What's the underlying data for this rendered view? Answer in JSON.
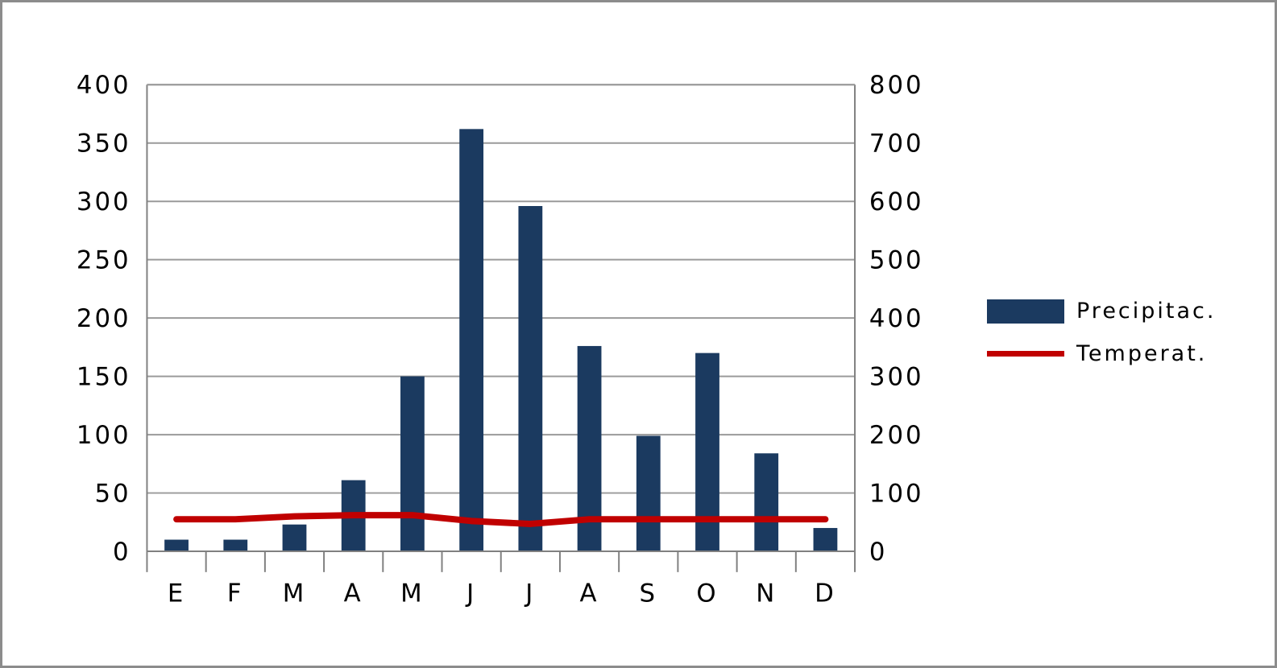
{
  "chart_data": {
    "type": "bar",
    "subtype": "bar-line-combo-climograph",
    "categories": [
      "E",
      "F",
      "M",
      "A",
      "M",
      "J",
      "J",
      "A",
      "S",
      "O",
      "N",
      "D"
    ],
    "series": [
      {
        "name": "Precipitac.",
        "type": "bar",
        "axis": "left",
        "color": "#1B3A60",
        "values": [
          10,
          10,
          23,
          61,
          150,
          362,
          296,
          176,
          99,
          170,
          84,
          20
        ]
      },
      {
        "name": "Temperat.",
        "type": "line",
        "axis": "right",
        "color": "#C00000",
        "values": [
          55,
          55,
          60,
          62,
          62,
          52,
          47,
          55,
          55,
          55,
          55,
          55
        ]
      }
    ],
    "title": "",
    "xlabel": "",
    "ylabel_left": "",
    "ylabel_right": "",
    "left_axis": {
      "min": 0,
      "max": 400,
      "step": 50,
      "ticks": [
        "0",
        "50",
        "100",
        "150",
        "200",
        "250",
        "300",
        "350",
        "400"
      ]
    },
    "right_axis": {
      "min": 0,
      "max": 800,
      "step": 100,
      "ticks": [
        "0",
        "100",
        "200",
        "300",
        "400",
        "500",
        "600",
        "700",
        "800"
      ]
    },
    "grid": true,
    "legend_position": "right"
  },
  "legend": {
    "items": [
      {
        "label": "Precipitac.",
        "swatch": "bar",
        "color": "#1B3A60"
      },
      {
        "label": "Temperat.",
        "swatch": "line",
        "color": "#C00000"
      }
    ]
  },
  "colors": {
    "bar": "#1B3A60",
    "line": "#C00000",
    "grid": "#9a9a9a",
    "axis": "#808080",
    "text": "#000000",
    "background": "#FFFFFF",
    "frame": "#8c8c8c"
  }
}
